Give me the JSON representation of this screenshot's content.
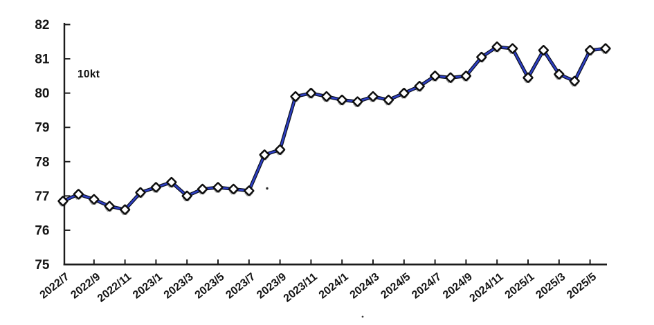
{
  "chart_data": {
    "type": "line",
    "title": "",
    "ylabel": "10kt",
    "xlabel": "",
    "ylim": [
      75,
      82
    ],
    "y_tick_labels": [
      "75",
      "76",
      "77",
      "78",
      "79",
      "80",
      "81",
      "82"
    ],
    "x_tick_labels": [
      "2022/7",
      "2022/9",
      "2022/11",
      "2023/1",
      "2023/3",
      "2023/5",
      "2023/7",
      "2023/9",
      "2023/11",
      "2024/1",
      "2024/3",
      "2024/5",
      "2024/7",
      "2024/9",
      "2024/11",
      "2025/1",
      "2025/3",
      "2025/5"
    ],
    "x_tick_every": 2,
    "categories": [
      "2022/7",
      "2022/8",
      "2022/9",
      "2022/10",
      "2022/11",
      "2022/12",
      "2023/1",
      "2023/2",
      "2023/3",
      "2023/4",
      "2023/5",
      "2023/6",
      "2023/7",
      "2023/8",
      "2023/9",
      "2023/10",
      "2023/11",
      "2023/12",
      "2024/1",
      "2024/2",
      "2024/3",
      "2024/4",
      "2024/5",
      "2024/6",
      "2024/7",
      "2024/8",
      "2024/9",
      "2024/10",
      "2024/11",
      "2024/12",
      "2025/1",
      "2025/2",
      "2025/3",
      "2025/4",
      "2025/5",
      "2025/6"
    ],
    "values": [
      76.85,
      77.05,
      76.9,
      76.7,
      76.6,
      77.1,
      77.25,
      77.4,
      77.0,
      77.2,
      77.25,
      77.2,
      77.15,
      78.2,
      78.35,
      79.9,
      80.0,
      79.9,
      79.8,
      79.75,
      79.9,
      79.8,
      80.0,
      80.2,
      80.5,
      80.45,
      80.5,
      81.05,
      81.35,
      81.3,
      80.45,
      81.25,
      80.55,
      80.35,
      81.25,
      81.3
    ],
    "grid": false,
    "legend": "none",
    "marker": "diamond",
    "marker_fill": "#ffffff",
    "marker_edge_color": "#0d0d0d",
    "line_color": "#2e3fc4",
    "line_edge_color": "#0c1222",
    "axis_color": "#1b1b1b"
  }
}
